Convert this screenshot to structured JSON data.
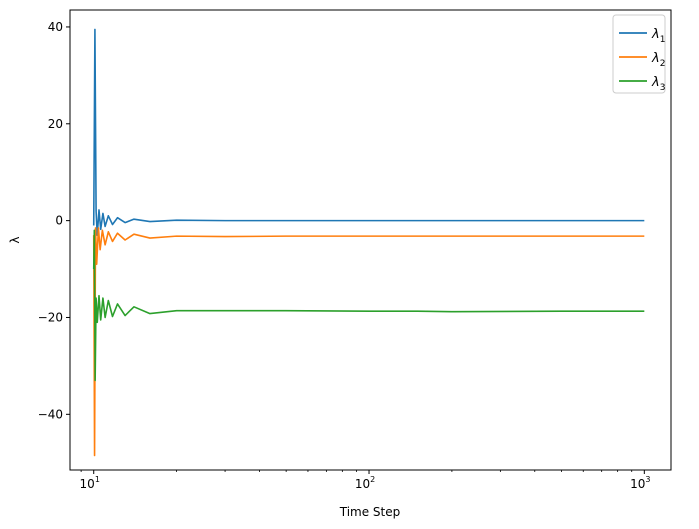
{
  "chart_data": {
    "type": "line",
    "xlabel": "Time Step",
    "ylabel": "λ",
    "xscale": "log",
    "xlim": [
      8.2,
      1250
    ],
    "ylim": [
      -51.5,
      43.5
    ],
    "xticks": [
      {
        "value": 10,
        "base": "10",
        "exp": "1"
      },
      {
        "value": 100,
        "base": "10",
        "exp": "2"
      },
      {
        "value": 1000,
        "base": "10",
        "exp": "3"
      }
    ],
    "yticks": [
      {
        "value": 40,
        "label": "40"
      },
      {
        "value": 20,
        "label": "20"
      },
      {
        "value": 0,
        "label": "0"
      },
      {
        "value": -20,
        "label": "−20"
      },
      {
        "value": -40,
        "label": "−40"
      }
    ],
    "grid": false,
    "legend_position": "top-right",
    "series": [
      {
        "name": "λ1",
        "base": "λ",
        "sub": "1",
        "color": "#1f77b4",
        "x": [
          10,
          10.1,
          10.2,
          10.3,
          10.45,
          10.6,
          10.8,
          11,
          11.3,
          11.7,
          12.2,
          13,
          14,
          16,
          20,
          30,
          50,
          100,
          150,
          200,
          500,
          1000
        ],
        "y": [
          -1,
          39.5,
          2,
          -3,
          2.2,
          -1.8,
          1.5,
          -1.2,
          1,
          -0.8,
          0.6,
          -0.4,
          0.3,
          -0.2,
          0.1,
          0,
          0,
          0,
          0,
          0,
          0,
          0
        ]
      },
      {
        "name": "λ2",
        "base": "λ",
        "sub": "2",
        "color": "#ff7f0e",
        "x": [
          10,
          10.07,
          10.15,
          10.25,
          10.4,
          10.55,
          10.75,
          11,
          11.3,
          11.7,
          12.2,
          13,
          14,
          16,
          20,
          30,
          50,
          100,
          150,
          200,
          500,
          1000
        ],
        "y": [
          -3,
          -48.5,
          -1.5,
          -9,
          -1.5,
          -6,
          -2,
          -5,
          -2.3,
          -4.3,
          -2.6,
          -4,
          -2.8,
          -3.6,
          -3.2,
          -3.3,
          -3.2,
          -3.2,
          -3.2,
          -3.2,
          -3.2,
          -3.2
        ]
      },
      {
        "name": "λ3",
        "base": "λ",
        "sub": "3",
        "color": "#2ca02c",
        "x": [
          10,
          10.05,
          10.12,
          10.2,
          10.3,
          10.45,
          10.6,
          10.8,
          11,
          11.3,
          11.7,
          12.2,
          13,
          14,
          16,
          20,
          30,
          50,
          100,
          150,
          200,
          500,
          1000
        ],
        "y": [
          -10,
          -2,
          -33,
          -16,
          -21,
          -15.5,
          -20.5,
          -16,
          -20,
          -16.5,
          -19.8,
          -17.2,
          -19.6,
          -17.8,
          -19.2,
          -18.6,
          -18.6,
          -18.6,
          -18.7,
          -18.7,
          -18.8,
          -18.7,
          -18.7
        ]
      }
    ]
  }
}
